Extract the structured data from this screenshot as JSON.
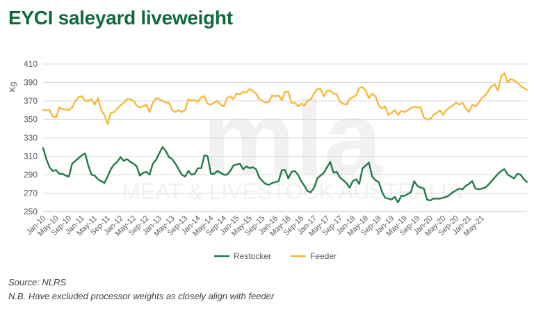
{
  "title": "EYCI saleyard liveweight",
  "footnotes": {
    "source": "Source: NLRS",
    "note": "N.B. Have excluded processor weights as closely align with feeder"
  },
  "watermark": {
    "logo_text": "mla",
    "tagline": "MEAT & LIVESTOCK AUSTRALIA"
  },
  "colors": {
    "title": "#0f6b3d",
    "restocker": "#1e7b45",
    "feeder": "#f5b938",
    "grid": "#d9d9d9"
  },
  "chart_data": {
    "type": "line",
    "title": "",
    "xlabel": "",
    "ylabel": "Kg",
    "ylim": [
      250,
      410
    ],
    "yticks": [
      250,
      270,
      290,
      310,
      330,
      350,
      370,
      390,
      410
    ],
    "grid": "horizontal",
    "legend_position": "bottom",
    "x_start": "2010-01",
    "x_end": "2021-06",
    "x_tick_labels": [
      "Jan-10",
      "May-10",
      "Sep-10",
      "Jan-11",
      "May-11",
      "Sep-11",
      "Jan-12",
      "May-12",
      "Sep-12",
      "Jan-13",
      "May-13",
      "Sep-13",
      "Jan-14",
      "May-14",
      "Sep-14",
      "Jan-15",
      "May-15",
      "Sep-15",
      "Jan-16",
      "May-16",
      "Sep-16",
      "Jan-17",
      "May-17",
      "Sep-17",
      "Jan-18",
      "May-18",
      "Sep-18",
      "Jan-19",
      "May-19",
      "Sep-19",
      "Jan-20",
      "May-20",
      "Sep-20",
      "Jan-21",
      "May-21"
    ],
    "series": [
      {
        "name": "Restocker",
        "color": "#1e7b45",
        "values": [
          319,
          307,
          298,
          294,
          295,
          291,
          291,
          289,
          288,
          302,
          305,
          308,
          311,
          313,
          300,
          290,
          289,
          285,
          283,
          281,
          288,
          296,
          301,
          304,
          309,
          305,
          307,
          304,
          302,
          299,
          289,
          292,
          293,
          290,
          302,
          306,
          313,
          320,
          316,
          309,
          307,
          302,
          296,
          290,
          288,
          294,
          290,
          291,
          297,
          297,
          311,
          310,
          291,
          291,
          294,
          292,
          290,
          290,
          294,
          300,
          301,
          302,
          296,
          299,
          297,
          298,
          296,
          287,
          283,
          280,
          279,
          281,
          282,
          283,
          295,
          295,
          286,
          293,
          294,
          290,
          283,
          278,
          272,
          271,
          276,
          286,
          289,
          292,
          298,
          304,
          292,
          293,
          287,
          284,
          281,
          276,
          283,
          285,
          280,
          297,
          300,
          303,
          288,
          284,
          282,
          272,
          265,
          264,
          263,
          266,
          260,
          267,
          267,
          269,
          271,
          283,
          278,
          276,
          275,
          263,
          262,
          264,
          264,
          264,
          265,
          266,
          268,
          271,
          273,
          275,
          274,
          278,
          280,
          283,
          275,
          274,
          275,
          276,
          279,
          283,
          287,
          291,
          294,
          296,
          290,
          288,
          286,
          291,
          290,
          285,
          282
        ]
      },
      {
        "name": "Feeder",
        "color": "#f5b938",
        "values": [
          360,
          360,
          360,
          353,
          352,
          363,
          361,
          361,
          360,
          363,
          370,
          374,
          375,
          370,
          370,
          372,
          366,
          373,
          360,
          355,
          345,
          357,
          358,
          362,
          365,
          368,
          372,
          372,
          370,
          365,
          363,
          364,
          366,
          358,
          368,
          373,
          372,
          370,
          368,
          368,
          360,
          358,
          360,
          358,
          360,
          372,
          370,
          371,
          369,
          374,
          375,
          367,
          366,
          368,
          370,
          366,
          364,
          373,
          375,
          372,
          378,
          377,
          380,
          379,
          383,
          381,
          378,
          372,
          370,
          368,
          369,
          376,
          375,
          376,
          371,
          380,
          380,
          368,
          368,
          364,
          367,
          365,
          370,
          372,
          378,
          383,
          383,
          375,
          381,
          381,
          378,
          377,
          369,
          367,
          366,
          372,
          374,
          376,
          384,
          385,
          381,
          373,
          378,
          375,
          365,
          362,
          364,
          355,
          357,
          360,
          355,
          359,
          358,
          360,
          362,
          364,
          363,
          363,
          352,
          350,
          350,
          355,
          357,
          360,
          355,
          360,
          363,
          365,
          368,
          366,
          368,
          362,
          358,
          366,
          364,
          368,
          373,
          376,
          381,
          386,
          388,
          381,
          397,
          400,
          390,
          394,
          392,
          390,
          386,
          384,
          382
        ]
      }
    ]
  }
}
